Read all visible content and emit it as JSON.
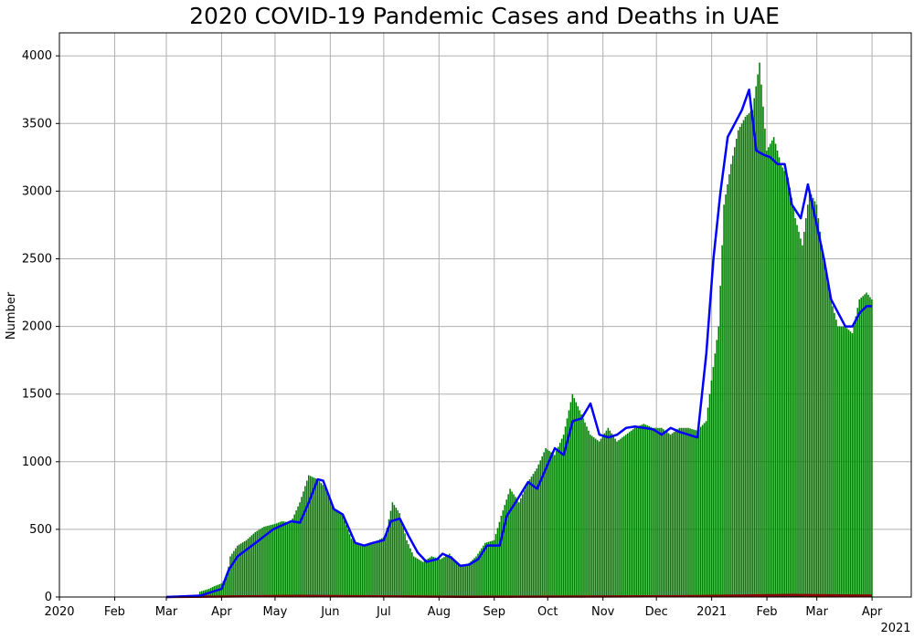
{
  "chart_data": {
    "type": "bar",
    "title": "2020 COVID-19 Pandemic Cases and Deaths in UAE",
    "xlabel": "",
    "ylabel": "Number",
    "ylim": [
      0,
      4170
    ],
    "xlim": [
      "2020-01-01",
      "2021-04-23"
    ],
    "grid": true,
    "x_tick_labels": [
      "2020",
      "Feb",
      "Mar",
      "Apr",
      "May",
      "Jun",
      "Jul",
      "Aug",
      "Sep",
      "Oct",
      "Nov",
      "Dec",
      "2021",
      "Feb",
      "Mar",
      "Apr"
    ],
    "x_offset_label": "2021",
    "y_ticks": [
      0,
      500,
      1000,
      1500,
      2000,
      2500,
      3000,
      3500,
      4000
    ],
    "colors": {
      "cases_bars": "#008000",
      "cases_avg": "#0000ff",
      "deaths_bars": "#000000",
      "deaths_avg": "#8b0000"
    },
    "series": [
      {
        "type": "bar",
        "color": "#008000",
        "points": [
          [
            "2020-03-20",
            40
          ],
          [
            "2020-03-25",
            60
          ],
          [
            "2020-03-28",
            80
          ],
          [
            "2020-04-01",
            100
          ],
          [
            "2020-04-04",
            150
          ],
          [
            "2020-04-06",
            300
          ],
          [
            "2020-04-10",
            380
          ],
          [
            "2020-04-15",
            420
          ],
          [
            "2020-04-20",
            480
          ],
          [
            "2020-04-25",
            520
          ],
          [
            "2020-05-01",
            540
          ],
          [
            "2020-05-05",
            560
          ],
          [
            "2020-05-10",
            550
          ],
          [
            "2020-05-15",
            700
          ],
          [
            "2020-05-20",
            900
          ],
          [
            "2020-05-25",
            870
          ],
          [
            "2020-05-30",
            800
          ],
          [
            "2020-06-03",
            650
          ],
          [
            "2020-06-08",
            600
          ],
          [
            "2020-06-13",
            430
          ],
          [
            "2020-06-18",
            380
          ],
          [
            "2020-06-23",
            400
          ],
          [
            "2020-06-28",
            420
          ],
          [
            "2020-07-02",
            450
          ],
          [
            "2020-07-06",
            700
          ],
          [
            "2020-07-10",
            620
          ],
          [
            "2020-07-14",
            420
          ],
          [
            "2020-07-18",
            300
          ],
          [
            "2020-07-23",
            260
          ],
          [
            "2020-07-28",
            300
          ],
          [
            "2020-08-02",
            280
          ],
          [
            "2020-08-07",
            320
          ],
          [
            "2020-08-12",
            240
          ],
          [
            "2020-08-17",
            240
          ],
          [
            "2020-08-22",
            300
          ],
          [
            "2020-08-27",
            400
          ],
          [
            "2020-09-01",
            420
          ],
          [
            "2020-09-05",
            600
          ],
          [
            "2020-09-10",
            800
          ],
          [
            "2020-09-15",
            700
          ],
          [
            "2020-09-20",
            850
          ],
          [
            "2020-09-25",
            950
          ],
          [
            "2020-09-30",
            1100
          ],
          [
            "2020-10-05",
            1050
          ],
          [
            "2020-10-10",
            1200
          ],
          [
            "2020-10-15",
            1500
          ],
          [
            "2020-10-20",
            1350
          ],
          [
            "2020-10-25",
            1200
          ],
          [
            "2020-10-30",
            1150
          ],
          [
            "2020-11-04",
            1250
          ],
          [
            "2020-11-09",
            1150
          ],
          [
            "2020-11-14",
            1200
          ],
          [
            "2020-11-19",
            1250
          ],
          [
            "2020-11-24",
            1280
          ],
          [
            "2020-11-29",
            1250
          ],
          [
            "2020-12-04",
            1250
          ],
          [
            "2020-12-09",
            1200
          ],
          [
            "2020-12-14",
            1250
          ],
          [
            "2020-12-19",
            1250
          ],
          [
            "2020-12-24",
            1230
          ],
          [
            "2020-12-29",
            1300
          ],
          [
            "2021-01-02",
            1700
          ],
          [
            "2021-01-05",
            2000
          ],
          [
            "2021-01-08",
            2900
          ],
          [
            "2021-01-12",
            3200
          ],
          [
            "2021-01-16",
            3450
          ],
          [
            "2021-01-20",
            3550
          ],
          [
            "2021-01-24",
            3600
          ],
          [
            "2021-01-28",
            3950
          ],
          [
            "2021-02-01",
            3300
          ],
          [
            "2021-02-05",
            3400
          ],
          [
            "2021-02-09",
            3200
          ],
          [
            "2021-02-13",
            3100
          ],
          [
            "2021-02-17",
            2800
          ],
          [
            "2021-02-21",
            2600
          ],
          [
            "2021-02-25",
            3000
          ],
          [
            "2021-03-01",
            2900
          ],
          [
            "2021-03-05",
            2500
          ],
          [
            "2021-03-09",
            2200
          ],
          [
            "2021-03-13",
            2000
          ],
          [
            "2021-03-17",
            2000
          ],
          [
            "2021-03-21",
            1950
          ],
          [
            "2021-03-25",
            2200
          ],
          [
            "2021-03-29",
            2250
          ],
          [
            "2021-04-01",
            2200
          ]
        ]
      },
      {
        "type": "line",
        "color": "#0000ff",
        "points": [
          [
            "2020-03-01",
            0
          ],
          [
            "2020-03-20",
            10
          ],
          [
            "2020-04-01",
            60
          ],
          [
            "2020-04-05",
            200
          ],
          [
            "2020-04-10",
            300
          ],
          [
            "2020-04-20",
            400
          ],
          [
            "2020-04-30",
            500
          ],
          [
            "2020-05-10",
            560
          ],
          [
            "2020-05-15",
            550
          ],
          [
            "2020-05-20",
            700
          ],
          [
            "2020-05-25",
            870
          ],
          [
            "2020-05-28",
            860
          ],
          [
            "2020-06-03",
            650
          ],
          [
            "2020-06-08",
            610
          ],
          [
            "2020-06-15",
            400
          ],
          [
            "2020-06-20",
            380
          ],
          [
            "2020-06-25",
            400
          ],
          [
            "2020-07-01",
            420
          ],
          [
            "2020-07-05",
            560
          ],
          [
            "2020-07-10",
            580
          ],
          [
            "2020-07-15",
            450
          ],
          [
            "2020-07-20",
            330
          ],
          [
            "2020-07-25",
            260
          ],
          [
            "2020-07-31",
            280
          ],
          [
            "2020-08-03",
            320
          ],
          [
            "2020-08-08",
            290
          ],
          [
            "2020-08-13",
            230
          ],
          [
            "2020-08-18",
            240
          ],
          [
            "2020-08-23",
            280
          ],
          [
            "2020-08-28",
            380
          ],
          [
            "2020-09-04",
            380
          ],
          [
            "2020-09-08",
            600
          ],
          [
            "2020-09-13",
            700
          ],
          [
            "2020-09-20",
            850
          ],
          [
            "2020-09-25",
            800
          ],
          [
            "2020-09-30",
            950
          ],
          [
            "2020-10-05",
            1100
          ],
          [
            "2020-10-10",
            1050
          ],
          [
            "2020-10-15",
            1300
          ],
          [
            "2020-10-20",
            1320
          ],
          [
            "2020-10-25",
            1430
          ],
          [
            "2020-10-30",
            1200
          ],
          [
            "2020-11-04",
            1180
          ],
          [
            "2020-11-09",
            1200
          ],
          [
            "2020-11-14",
            1250
          ],
          [
            "2020-11-19",
            1260
          ],
          [
            "2020-11-24",
            1250
          ],
          [
            "2020-11-29",
            1240
          ],
          [
            "2020-12-04",
            1200
          ],
          [
            "2020-12-09",
            1250
          ],
          [
            "2020-12-14",
            1220
          ],
          [
            "2020-12-19",
            1200
          ],
          [
            "2020-12-24",
            1180
          ],
          [
            "2020-12-29",
            1800
          ],
          [
            "2021-01-02",
            2500
          ],
          [
            "2021-01-06",
            3000
          ],
          [
            "2021-01-10",
            3400
          ],
          [
            "2021-01-14",
            3500
          ],
          [
            "2021-01-18",
            3600
          ],
          [
            "2021-01-22",
            3750
          ],
          [
            "2021-01-26",
            3300
          ],
          [
            "2021-01-30",
            3270
          ],
          [
            "2021-02-03",
            3250
          ],
          [
            "2021-02-07",
            3200
          ],
          [
            "2021-02-11",
            3200
          ],
          [
            "2021-02-15",
            2900
          ],
          [
            "2021-02-20",
            2800
          ],
          [
            "2021-02-24",
            3050
          ],
          [
            "2021-03-01",
            2750
          ],
          [
            "2021-03-05",
            2500
          ],
          [
            "2021-03-09",
            2200
          ],
          [
            "2021-03-13",
            2100
          ],
          [
            "2021-03-17",
            2000
          ],
          [
            "2021-03-21",
            2000
          ],
          [
            "2021-03-25",
            2100
          ],
          [
            "2021-03-29",
            2150
          ],
          [
            "2021-04-01",
            2150
          ]
        ]
      },
      {
        "type": "bar",
        "color": "#000000",
        "points": [
          [
            "2020-04-15",
            5
          ],
          [
            "2020-05-15",
            8
          ],
          [
            "2020-06-15",
            6
          ],
          [
            "2020-09-15",
            4
          ],
          [
            "2020-11-15",
            5
          ],
          [
            "2020-12-15",
            6
          ],
          [
            "2021-01-15",
            10
          ],
          [
            "2021-02-15",
            15
          ],
          [
            "2021-03-15",
            12
          ]
        ]
      },
      {
        "type": "line",
        "color": "#8b0000",
        "points": [
          [
            "2020-03-01",
            0
          ],
          [
            "2020-04-15",
            5
          ],
          [
            "2020-05-15",
            8
          ],
          [
            "2020-06-15",
            6
          ],
          [
            "2020-08-15",
            2
          ],
          [
            "2020-10-15",
            3
          ],
          [
            "2020-12-15",
            6
          ],
          [
            "2021-01-15",
            10
          ],
          [
            "2021-02-15",
            15
          ],
          [
            "2021-03-15",
            12
          ],
          [
            "2021-04-01",
            10
          ]
        ]
      }
    ]
  }
}
